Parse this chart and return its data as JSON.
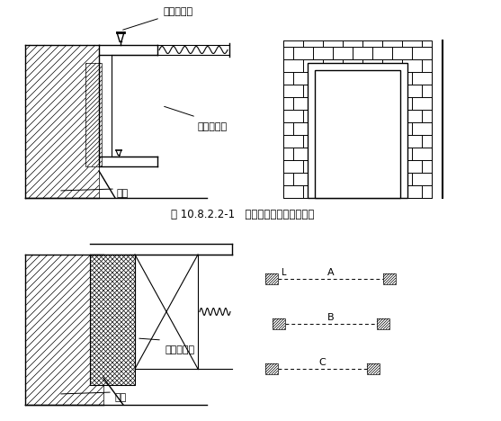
{
  "title_caption": "图 10.8.2.2-1   钢木质防火门结构安装图",
  "label1": "打钉拉铁皮",
  "label2": "钢防火门框",
  "label3": "墙体",
  "label4": "防火木门框",
  "label5": "墙体",
  "label_A": "A",
  "label_B": "B",
  "label_C": "C",
  "label_L": "L",
  "bg_color": "#ffffff",
  "line_color": "#000000"
}
